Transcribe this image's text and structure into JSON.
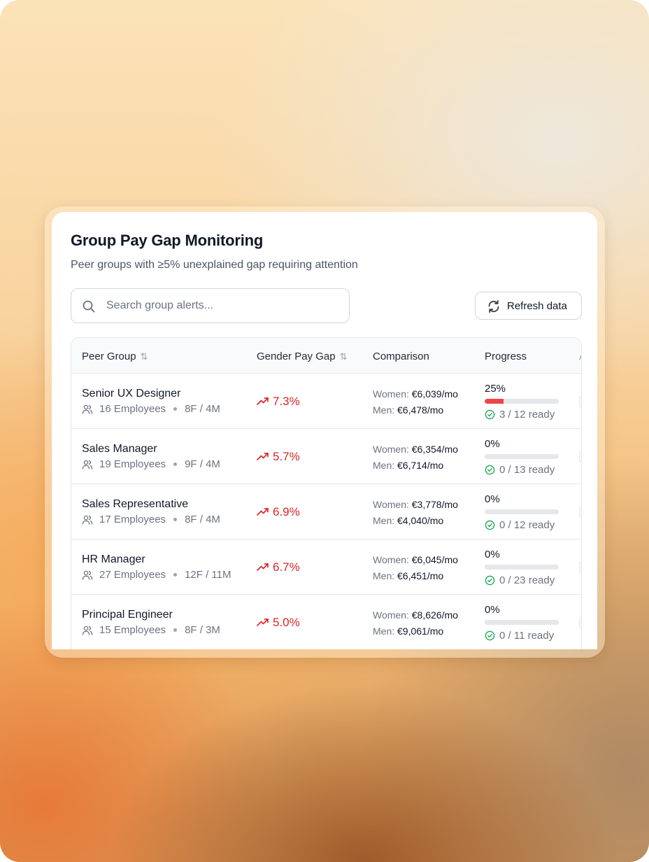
{
  "header": {
    "title": "Group Pay Gap Monitoring",
    "subtitle": "Peer groups with ≥5% unexplained gap requiring attention"
  },
  "search": {
    "placeholder": "Search group alerts...",
    "icon": "search-icon"
  },
  "toolbar": {
    "refresh_label": "Refresh data",
    "refresh_icon": "refresh-icon"
  },
  "table": {
    "columns": {
      "peer_group": "Peer Group",
      "gap": "Gender Pay Gap",
      "comparison": "Comparison",
      "progress": "Progress",
      "actions_partial": "A"
    },
    "labels": {
      "women": "Women:",
      "men": "Men:"
    },
    "rows": [
      {
        "name": "Senior UX Designer",
        "employees": "16 Employees",
        "split": "8F / 4M",
        "gap": "7.3%",
        "women": "€6,039/mo",
        "men": "€6,478/mo",
        "progress_pct": "25%",
        "progress_value": 25,
        "ready": "3 / 12 ready"
      },
      {
        "name": "Sales Manager",
        "employees": "19 Employees",
        "split": "9F / 4M",
        "gap": "5.7%",
        "women": "€6,354/mo",
        "men": "€6,714/mo",
        "progress_pct": "0%",
        "progress_value": 0,
        "ready": "0 / 13 ready"
      },
      {
        "name": "Sales Representative",
        "employees": "17 Employees",
        "split": "8F / 4M",
        "gap": "6.9%",
        "women": "€3,778/mo",
        "men": "€4,040/mo",
        "progress_pct": "0%",
        "progress_value": 0,
        "ready": "0 / 12 ready"
      },
      {
        "name": "HR Manager",
        "employees": "27 Employees",
        "split": "12F / 11M",
        "gap": "6.7%",
        "women": "€6,045/mo",
        "men": "€6,451/mo",
        "progress_pct": "0%",
        "progress_value": 0,
        "ready": "0 / 23 ready"
      },
      {
        "name": "Principal Engineer",
        "employees": "15 Employees",
        "split": "8F / 3M",
        "gap": "5.0%",
        "women": "€8,626/mo",
        "men": "€9,061/mo",
        "progress_pct": "0%",
        "progress_value": 0,
        "ready": "0 / 11 ready"
      }
    ]
  },
  "colors": {
    "gap_red": "#dc2626",
    "progress_fill": "#ef4444",
    "ready_green": "#16a34a"
  }
}
